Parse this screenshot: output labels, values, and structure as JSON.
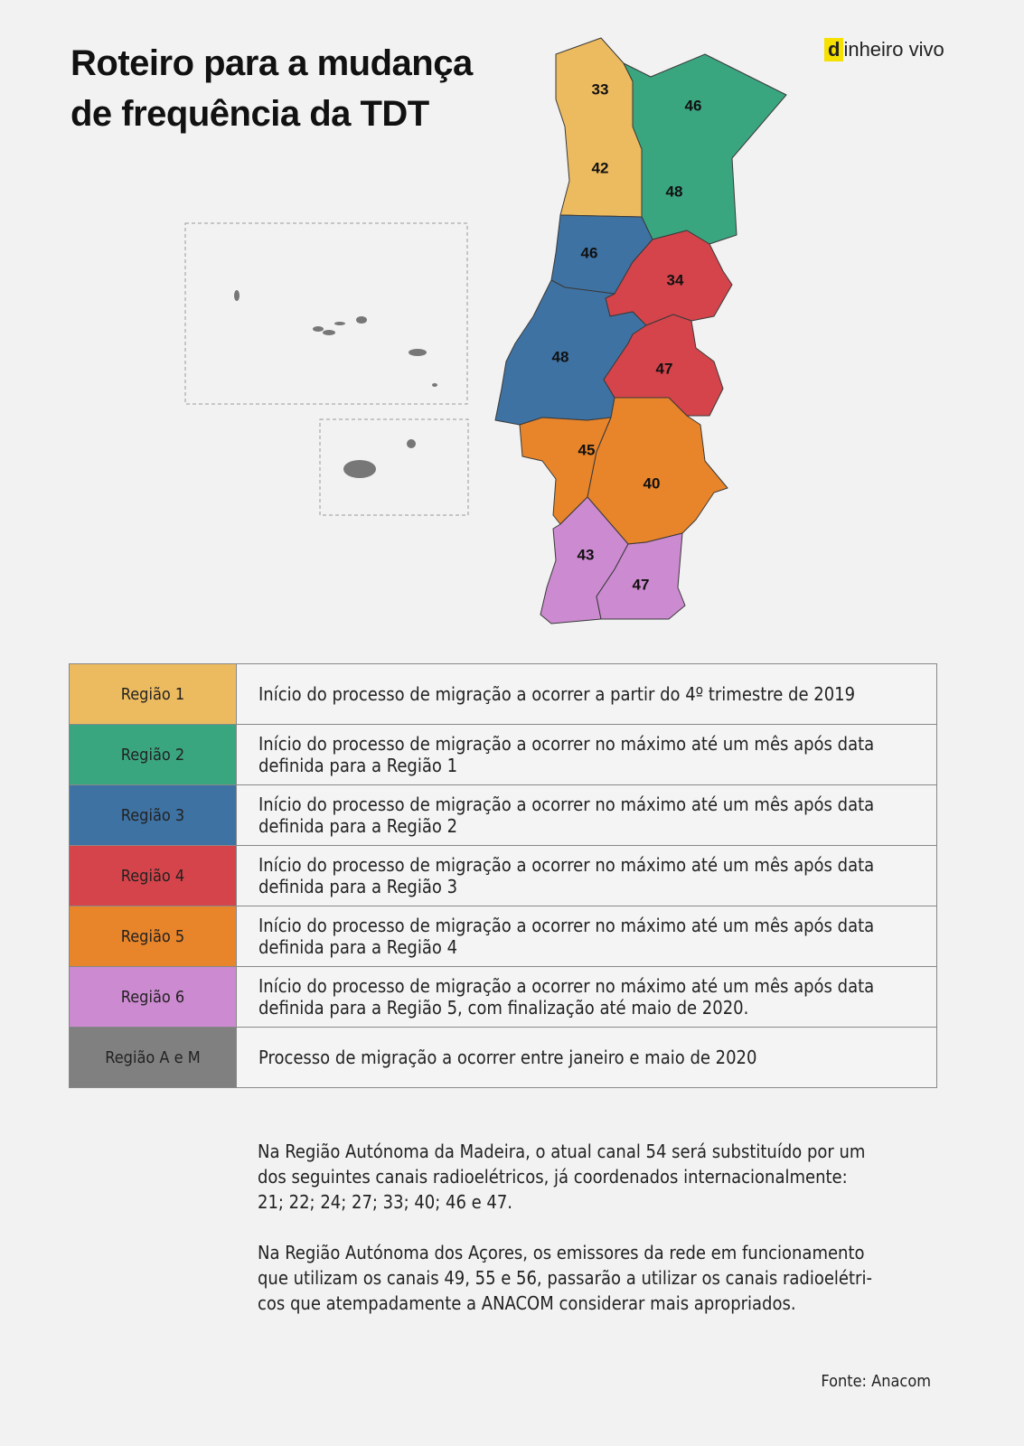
{
  "header": {
    "title": [
      "Roteiro para a mudança",
      "de frequência da TDT"
    ],
    "logo": {
      "mark": "d",
      "text": "inheiro vivo"
    }
  },
  "map": {
    "labels": [
      33,
      46,
      42,
      48,
      46,
      34,
      48,
      47,
      45,
      40,
      43,
      47
    ]
  },
  "table": {
    "rows": [
      {
        "region": "Região 1",
        "description": [
          "Início do processo de migração a ocorrer a partir do 4º trimestre de 2019"
        ]
      },
      {
        "region": "Região 2",
        "description": [
          "Início do processo de migração a ocorrer no máximo até um mês após data",
          "definida para a Região 1"
        ]
      },
      {
        "region": "Região 3",
        "description": [
          "Início do processo de migração a ocorrer no máximo até um mês após data",
          "definida para a Região 2"
        ]
      },
      {
        "region": "Região 4",
        "description": [
          "Início do processo de migração a ocorrer no máximo até um mês após data",
          "definida para a Região 3"
        ]
      },
      {
        "region": "Região 5",
        "description": [
          "Início do processo de migração a ocorrer no máximo até um mês após data",
          "definida para a Região 4"
        ]
      },
      {
        "region": "Região 6",
        "description": [
          "Início do processo de migração a ocorrer no máximo até um mês após data",
          "definida para a Região 5, com finalização até maio de 2020."
        ]
      },
      {
        "region": "Região A e M",
        "description": [
          "Processo de migração a ocorrer entre janeiro e maio de 2020"
        ]
      }
    ]
  },
  "notes": [
    [
      "Na Região Autónoma da Madeira, o atual canal 54 será substituído por um",
      "dos seguintes canais radioelétricos, já coordenados internacionalmente:",
      "21; 22; 24; 27; 33; 40; 46 e 47."
    ],
    [
      "Na Região Autónoma dos Açores, os emissores da rede em funcionamento",
      "que utilizam os canais 49, 55 e 56, passarão a utilizar os canais radioelétri-",
      "cos que atempadamente a ANACOM considerar mais apropriados."
    ]
  ],
  "source": "Fonte: Anacom"
}
